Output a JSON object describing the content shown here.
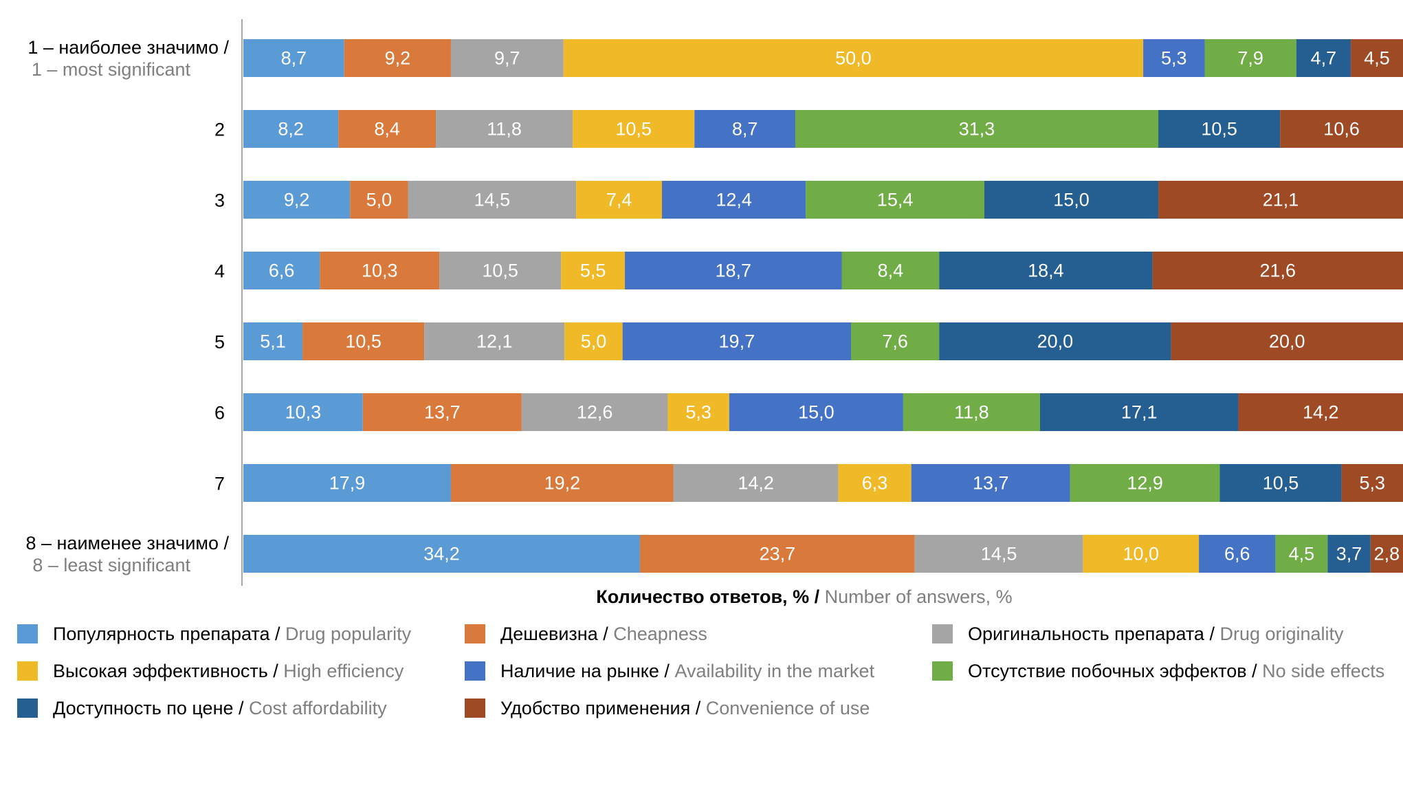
{
  "chart_data": {
    "type": "bar",
    "orientation": "horizontal",
    "stacked": true,
    "categories": [
      {
        "ru": "1 – наиболее значимо /",
        "en": "1 – most significant"
      },
      {
        "ru": "2",
        "en": ""
      },
      {
        "ru": "3",
        "en": ""
      },
      {
        "ru": "4",
        "en": ""
      },
      {
        "ru": "5",
        "en": ""
      },
      {
        "ru": "6",
        "en": ""
      },
      {
        "ru": "7",
        "en": ""
      },
      {
        "ru": "8 – наименее значимо /",
        "en": "8 – least significant"
      }
    ],
    "series": [
      {
        "name_ru": "Популярность препарата",
        "name_en": "Drug popularity",
        "color": "#5b9bd5",
        "values": [
          8.7,
          8.2,
          9.2,
          6.6,
          5.1,
          10.3,
          17.9,
          34.2
        ],
        "labels": [
          "8,7",
          "8,2",
          "9,2",
          "6,6",
          "5,1",
          "10,3",
          "17,9",
          "34,2"
        ]
      },
      {
        "name_ru": "Дешевизна",
        "name_en": "Cheapness",
        "color": "#d97a3c",
        "values": [
          9.2,
          8.4,
          5.0,
          10.3,
          10.5,
          13.7,
          19.2,
          23.7
        ],
        "labels": [
          "9,2",
          "8,4",
          "5,0",
          "10,3",
          "10,5",
          "13,7",
          "19,2",
          "23,7"
        ]
      },
      {
        "name_ru": "Оригинальность препарата",
        "name_en": "Drug originality",
        "color": "#a5a5a5",
        "values": [
          9.7,
          11.8,
          14.5,
          10.5,
          12.1,
          12.6,
          14.2,
          14.5
        ],
        "labels": [
          "9,7",
          "11,8",
          "14,5",
          "10,5",
          "12,1",
          "12,6",
          "14,2",
          "14,5"
        ]
      },
      {
        "name_ru": "Высокая эффективность",
        "name_en": "High efficiency",
        "color": "#f0b928",
        "values": [
          50.0,
          10.5,
          7.4,
          5.5,
          5.0,
          5.3,
          6.3,
          10.0
        ],
        "labels": [
          "50,0",
          "10,5",
          "7,4",
          "5,5",
          "5,0",
          "5,3",
          "6,3",
          "10,0"
        ]
      },
      {
        "name_ru": "Наличие на рынке",
        "name_en": "Availability in the market",
        "color": "#4472c4",
        "values": [
          5.3,
          8.7,
          12.4,
          18.7,
          19.7,
          15.0,
          13.7,
          6.6
        ],
        "labels": [
          "5,3",
          "8,7",
          "12,4",
          "18,7",
          "19,7",
          "15,0",
          "13,7",
          "6,6"
        ]
      },
      {
        "name_ru": "Отсутствие побочных эффектов",
        "name_en": "No side effects",
        "color": "#70ad47",
        "values": [
          7.9,
          31.3,
          15.4,
          8.4,
          7.6,
          11.8,
          12.9,
          4.5
        ],
        "labels": [
          "7,9",
          "31,3",
          "15,4",
          "8,4",
          "7,6",
          "11,8",
          "12,9",
          "4,5"
        ]
      },
      {
        "name_ru": "Доступность по цене",
        "name_en": "Cost affordability",
        "color": "#255e91",
        "values": [
          4.7,
          10.5,
          15.0,
          18.4,
          20.0,
          17.1,
          10.5,
          3.7
        ],
        "labels": [
          "4,7",
          "10,5",
          "15,0",
          "18,4",
          "20,0",
          "17,1",
          "10,5",
          "3,7"
        ]
      },
      {
        "name_ru": "Удобство применения",
        "name_en": "Convenience of use",
        "color": "#9e4a25",
        "values": [
          4.5,
          10.6,
          21.1,
          21.6,
          20.0,
          14.2,
          5.3,
          2.8
        ],
        "labels": [
          "4,5",
          "10,6",
          "21,1",
          "21,6",
          "20,0",
          "14,2",
          "5,3",
          "2,8"
        ]
      }
    ],
    "xlabel_ru": "Количество ответов, %",
    "xlabel_en": "Number of answers, %",
    "legend_position": "bottom",
    "grid": false
  }
}
